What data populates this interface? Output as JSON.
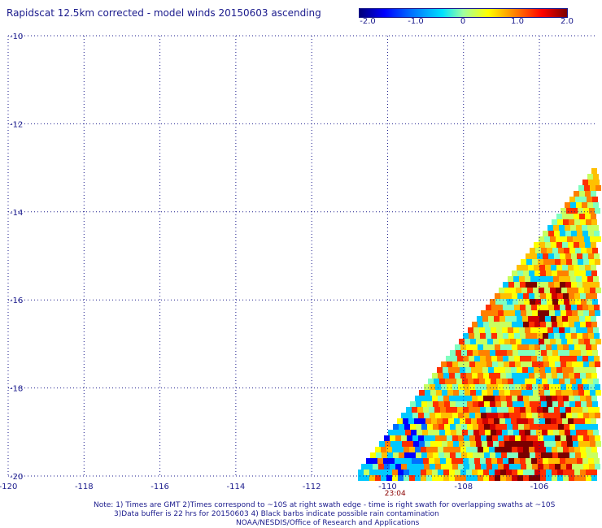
{
  "title": "Rapidscat 12.5km corrected - model winds 20150603 ascending",
  "colorbar": {
    "ticks": [
      "-2.0",
      "-1.0",
      "0",
      "1.0",
      "2.0"
    ],
    "range": [
      -2.0,
      2.0
    ]
  },
  "map": {
    "lon_range": [
      -120,
      -104.5
    ],
    "lat_range": [
      -20,
      -10
    ],
    "lon_ticks": [
      -120,
      -118,
      -116,
      -114,
      -112,
      -110,
      -108,
      -106
    ],
    "lat_ticks": [
      -10,
      -12,
      -14,
      -16,
      -18,
      -20
    ],
    "lon_labels": [
      "-120",
      "-118",
      "-116",
      "-114",
      "-112",
      "-110",
      "-108",
      "-106"
    ],
    "lat_labels": [
      "-10",
      "-12",
      "-14",
      "-16",
      "-18",
      "-20"
    ],
    "time_label": "23:04",
    "time_lon": -109.8
  },
  "notes": {
    "line1": "Note: 1) Times are GMT 2)Times correspond to ~10S at right swath edge - time is right swath for overlapping swaths at ~10S",
    "line2": "3)Data buffer is 22 hrs for 20150603 4) Black barbs indicate possible rain contamination",
    "line3": "NOAA/NESDIS/Office of Research and Applications"
  }
}
